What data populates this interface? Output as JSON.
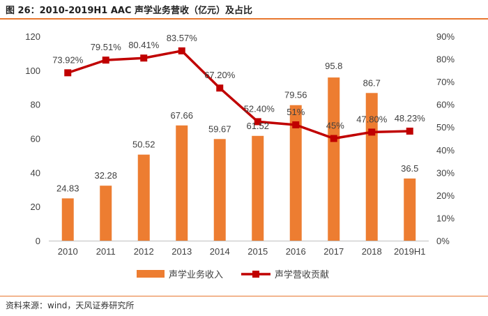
{
  "figure": {
    "title": "图 26：2010-2019H1 AAC 声学业务营收（亿元）及占比",
    "source": "资料来源：wind，天风证券研究所"
  },
  "colors": {
    "bar": "#ed7d31",
    "line": "#c00000",
    "accent_rule": "#e8772e",
    "axis_text": "#404040",
    "grid": "#d9d9d9"
  },
  "chart_data": {
    "type": "bar+line",
    "title": "2010-2019H1 AAC 声学业务营收（亿元）及占比",
    "categories": [
      "2010",
      "2011",
      "2012",
      "2013",
      "2014",
      "2015",
      "2016",
      "2017",
      "2018",
      "2019H1"
    ],
    "series": [
      {
        "name": "声学业务收入",
        "type": "bar",
        "axis": "left",
        "values": [
          24.83,
          32.28,
          50.52,
          67.66,
          59.67,
          61.52,
          79.56,
          95.8,
          86.7,
          36.5
        ],
        "labels": [
          "24.83",
          "32.28",
          "50.52",
          "67.66",
          "59.67",
          "61.52",
          "79.56",
          "95.8",
          "86.7",
          "36.5"
        ]
      },
      {
        "name": "声学营收贡献",
        "type": "line",
        "axis": "right",
        "values": [
          73.92,
          79.51,
          80.41,
          83.57,
          67.2,
          52.4,
          51,
          45,
          47.8,
          48.23
        ],
        "labels": [
          "73.92%",
          "79.51%",
          "80.41%",
          "83.57%",
          "67.20%",
          "52.40%",
          "51%",
          "45%",
          "47.80%",
          "48.23%"
        ]
      }
    ],
    "left_axis": {
      "ylim": [
        0,
        120
      ],
      "ticks": [
        0,
        20,
        40,
        60,
        80,
        100,
        120
      ],
      "tick_labels": [
        "0",
        "20",
        "40",
        "60",
        "80",
        "100",
        "120"
      ]
    },
    "right_axis": {
      "ylim": [
        0,
        90
      ],
      "ticks": [
        0,
        10,
        20,
        30,
        40,
        50,
        60,
        70,
        80,
        90
      ],
      "tick_labels": [
        "0%",
        "10%",
        "20%",
        "30%",
        "40%",
        "50%",
        "60%",
        "70%",
        "80%",
        "90%"
      ]
    },
    "grid": false,
    "legend_position": "bottom-center"
  }
}
